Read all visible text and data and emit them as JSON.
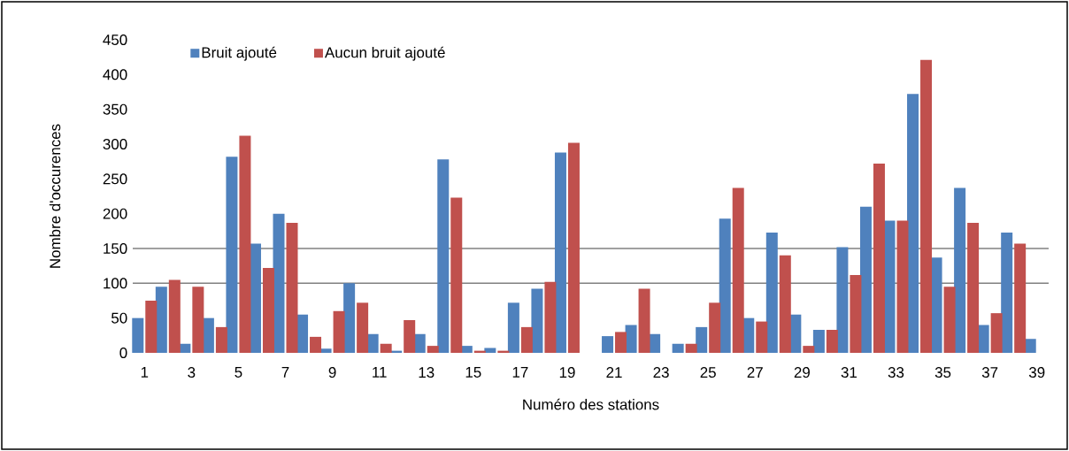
{
  "chart_data": {
    "type": "bar",
    "xlabel": "Numéro des stations",
    "ylabel": "Nombre d'occurences",
    "categories": [
      "1",
      null,
      "3",
      null,
      "5",
      null,
      "7",
      null,
      "9",
      null,
      "11",
      null,
      "13",
      null,
      "15",
      null,
      "17",
      null,
      "19",
      null,
      "21",
      null,
      "23",
      null,
      "25",
      null,
      "27",
      null,
      "29",
      null,
      "31",
      null,
      "33",
      null,
      "35",
      null,
      "37",
      null,
      "39"
    ],
    "series": [
      {
        "name": "Bruit ajouté",
        "color": "#4f81bd",
        "values": [
          50,
          95,
          13,
          50,
          282,
          157,
          200,
          55,
          6,
          100,
          27,
          3,
          27,
          278,
          10,
          7,
          72,
          92,
          288,
          0,
          24,
          40,
          27,
          13,
          37,
          193,
          50,
          173,
          55,
          33,
          152,
          210,
          190,
          372,
          137,
          237,
          40,
          173,
          20
        ]
      },
      {
        "name": "Aucun bruit ajouté",
        "color": "#c0504d",
        "values": [
          75,
          105,
          95,
          37,
          312,
          122,
          187,
          23,
          60,
          72,
          13,
          47,
          10,
          223,
          3,
          3,
          37,
          102,
          302,
          0,
          30,
          92,
          0,
          13,
          72,
          237,
          45,
          140,
          10,
          33,
          112,
          272,
          190,
          421,
          95,
          187,
          57,
          157,
          0
        ]
      }
    ],
    "ylim": [
      0,
      450
    ],
    "yticks": [
      0,
      50,
      100,
      150,
      200,
      250,
      300,
      350,
      400,
      450
    ],
    "ref_lines": [
      {
        "axis": "y",
        "value": 100,
        "color": "#808080"
      },
      {
        "axis": "y",
        "value": 150,
        "color": "#808080"
      }
    ],
    "legend": "top left"
  }
}
